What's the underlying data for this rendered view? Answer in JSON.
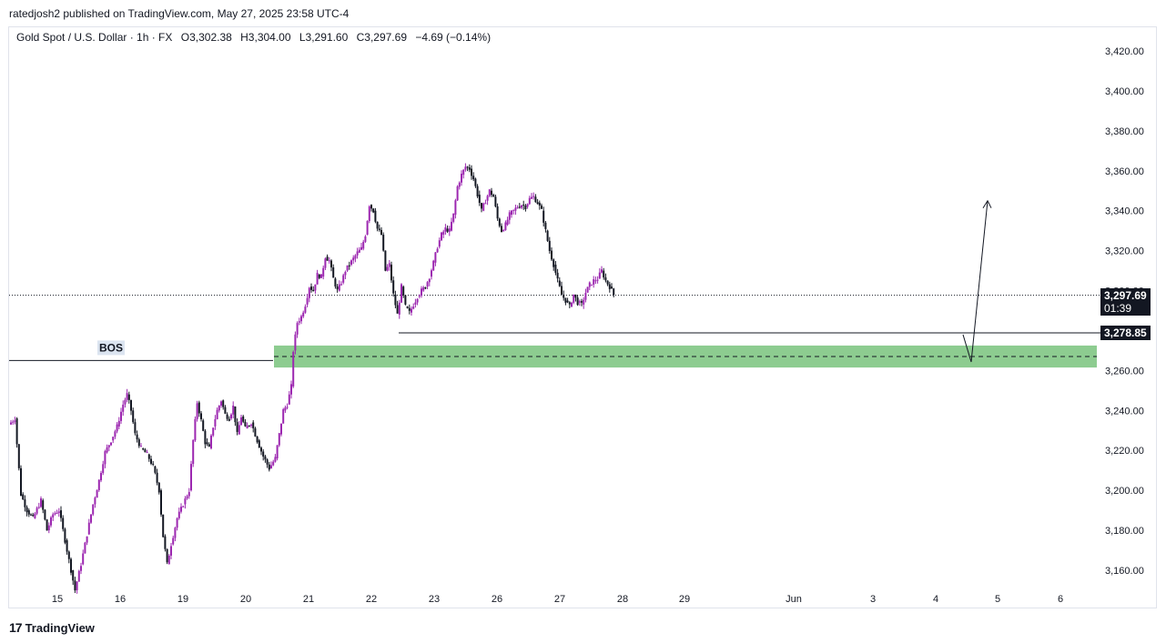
{
  "header": {
    "publisher_line": "ratedjosh2 published on TradingView.com, May 27, 2025 23:58 UTC-4"
  },
  "legend": {
    "symbol": "Gold Spot / U.S. Dollar · 1h · FX",
    "open": "O3,302.38",
    "high": "H3,304.00",
    "low": "L3,291.60",
    "close": "C3,297.69",
    "change": "−4.69 (−0.14%)"
  },
  "footer": {
    "brand": "TradingView",
    "logo": "17"
  },
  "colors": {
    "candle_up": "#9c27b0",
    "candle_down": "#131722",
    "zone_fill": "#81c784",
    "line": "#131722",
    "grid_text": "#131722"
  },
  "chart_data": {
    "type": "candlestick",
    "y_unit": "USD",
    "ylim": [
      3150,
      3430
    ],
    "y_ticks": [
      3160,
      3180,
      3200,
      3220,
      3240,
      3260,
      3280,
      3300,
      3320,
      3340,
      3360,
      3380,
      3400,
      3420
    ],
    "y_tick_labels": [
      "3,160.00",
      "3,180.00",
      "3,200.00",
      "3,220.00",
      "3,240.00",
      "3,260.00",
      "3,280.00",
      "3,300.00",
      "3,320.00",
      "3,340.00",
      "3,360.00",
      "3,380.00",
      "3,400.00",
      "3,420.00"
    ],
    "x_tick_labels": [
      "15",
      "16",
      "19",
      "20",
      "21",
      "22",
      "23",
      "26",
      "27",
      "28",
      "29",
      "Jun",
      "3",
      "4",
      "5",
      "6"
    ],
    "current_price": {
      "label": "3,297.69",
      "countdown": "01:39",
      "value": 3297.69
    },
    "level_price": {
      "label": "3,278.85",
      "value": 3278.85
    },
    "bos_level": {
      "label": "BOS",
      "value": 3265
    },
    "demand_zone": {
      "top": 3272.5,
      "bottom": 3261.5,
      "mid": 3267
    },
    "projection": {
      "from_value": 3267,
      "to_value": 3345
    },
    "price_path": [
      [
        0,
        3233
      ],
      [
        3,
        3236
      ],
      [
        6,
        3198
      ],
      [
        9,
        3190
      ],
      [
        12,
        3186
      ],
      [
        16,
        3195
      ],
      [
        19,
        3180
      ],
      [
        22,
        3188
      ],
      [
        25,
        3190
      ],
      [
        28,
        3175
      ],
      [
        31,
        3160
      ],
      [
        33,
        3150
      ],
      [
        36,
        3163
      ],
      [
        39,
        3178
      ],
      [
        42,
        3193
      ],
      [
        45,
        3205
      ],
      [
        48,
        3219
      ],
      [
        51,
        3225
      ],
      [
        54,
        3232
      ],
      [
        57,
        3243
      ],
      [
        59,
        3248
      ],
      [
        61,
        3240
      ],
      [
        63,
        3228
      ],
      [
        66,
        3221
      ],
      [
        69,
        3218
      ],
      [
        72,
        3212
      ],
      [
        75,
        3200
      ],
      [
        77,
        3177
      ],
      [
        79,
        3163
      ],
      [
        81,
        3173
      ],
      [
        84,
        3186
      ],
      [
        87,
        3193
      ],
      [
        90,
        3200
      ],
      [
        92,
        3225
      ],
      [
        94,
        3244
      ],
      [
        96,
        3235
      ],
      [
        98,
        3224
      ],
      [
        100,
        3221
      ],
      [
        102,
        3232
      ],
      [
        104,
        3240
      ],
      [
        106,
        3245
      ],
      [
        108,
        3238
      ],
      [
        110,
        3236
      ],
      [
        112,
        3242
      ],
      [
        114,
        3228
      ],
      [
        116,
        3237
      ],
      [
        118,
        3231
      ],
      [
        121,
        3234
      ],
      [
        124,
        3225
      ],
      [
        127,
        3217
      ],
      [
        130,
        3211
      ],
      [
        133,
        3216
      ],
      [
        135,
        3228
      ],
      [
        137,
        3240
      ],
      [
        139,
        3243
      ],
      [
        141,
        3252
      ],
      [
        142,
        3270
      ],
      [
        144,
        3284
      ],
      [
        146,
        3287
      ],
      [
        148,
        3293
      ],
      [
        150,
        3302
      ],
      [
        152,
        3300
      ],
      [
        154,
        3308
      ],
      [
        156,
        3307
      ],
      [
        158,
        3317
      ],
      [
        160,
        3315
      ],
      [
        162,
        3306
      ],
      [
        164,
        3300
      ],
      [
        166,
        3304
      ],
      [
        168,
        3310
      ],
      [
        170,
        3313
      ],
      [
        172,
        3316
      ],
      [
        174,
        3319
      ],
      [
        176,
        3321
      ],
      [
        178,
        3328
      ],
      [
        180,
        3343
      ],
      [
        182,
        3340
      ],
      [
        184,
        3331
      ],
      [
        186,
        3328
      ],
      [
        188,
        3310
      ],
      [
        190,
        3313
      ],
      [
        192,
        3298
      ],
      [
        194,
        3288
      ],
      [
        196,
        3302
      ],
      [
        198,
        3292
      ],
      [
        200,
        3289
      ],
      [
        202,
        3293
      ],
      [
        204,
        3297
      ],
      [
        206,
        3300
      ],
      [
        208,
        3302
      ],
      [
        210,
        3307
      ],
      [
        212,
        3314
      ],
      [
        214,
        3322
      ],
      [
        216,
        3328
      ],
      [
        218,
        3331
      ],
      [
        220,
        3330
      ],
      [
        222,
        3338
      ],
      [
        224,
        3352
      ],
      [
        226,
        3358
      ],
      [
        228,
        3362
      ],
      [
        230,
        3361
      ],
      [
        232,
        3356
      ],
      [
        234,
        3348
      ],
      [
        236,
        3340
      ],
      [
        238,
        3345
      ],
      [
        240,
        3350
      ],
      [
        242,
        3347
      ],
      [
        244,
        3336
      ],
      [
        246,
        3330
      ],
      [
        248,
        3333
      ],
      [
        250,
        3338
      ],
      [
        252,
        3340
      ],
      [
        254,
        3342
      ],
      [
        256,
        3343
      ],
      [
        258,
        3342
      ],
      [
        260,
        3346
      ],
      [
        262,
        3347
      ],
      [
        264,
        3344
      ],
      [
        266,
        3340
      ],
      [
        268,
        3330
      ],
      [
        270,
        3320
      ],
      [
        272,
        3313
      ],
      [
        274,
        3305
      ],
      [
        276,
        3298
      ],
      [
        278,
        3295
      ],
      [
        280,
        3292
      ],
      [
        282,
        3298
      ],
      [
        284,
        3294
      ],
      [
        286,
        3293
      ],
      [
        288,
        3299
      ],
      [
        290,
        3303
      ],
      [
        292,
        3305
      ],
      [
        294,
        3306
      ],
      [
        296,
        3310
      ],
      [
        298,
        3305
      ],
      [
        300,
        3302
      ],
      [
        302,
        3298
      ]
    ]
  }
}
